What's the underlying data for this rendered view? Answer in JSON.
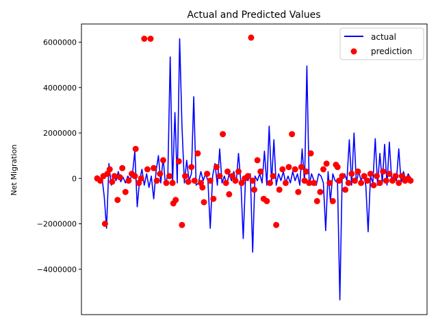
{
  "chart_data": {
    "type": "line",
    "title": "Actual and Predicted Values",
    "xlabel": "",
    "ylabel": "Net Migration",
    "ylim": [
      -6000000,
      6800000
    ],
    "xlim": [
      -20,
      420
    ],
    "yticks": [
      -4000000,
      -2000000,
      0,
      2000000,
      4000000,
      6000000
    ],
    "ytick_labels": [
      "−4000000",
      "−2000000",
      "0",
      "2000000",
      "4000000",
      "6000000"
    ],
    "grid": false,
    "legend": {
      "placement": "top-right",
      "entries": [
        {
          "label": "actual",
          "color": "#0000ff",
          "marker": "line"
        },
        {
          "label": "prediction",
          "color": "#ff0000",
          "marker": "circle"
        }
      ]
    },
    "series": [
      {
        "name": "actual",
        "color": "#0000ff",
        "x": [
          0,
          3,
          6,
          9,
          12,
          15,
          18,
          21,
          24,
          27,
          30,
          33,
          36,
          39,
          42,
          45,
          48,
          51,
          54,
          57,
          60,
          63,
          66,
          69,
          72,
          75,
          78,
          81,
          84,
          87,
          90,
          93,
          96,
          99,
          102,
          105,
          108,
          111,
          114,
          117,
          120,
          123,
          126,
          129,
          132,
          135,
          138,
          141,
          144,
          147,
          150,
          153,
          156,
          159,
          162,
          165,
          168,
          171,
          174,
          177,
          180,
          183,
          186,
          189,
          192,
          195,
          198,
          201,
          204,
          207,
          210,
          213,
          216,
          219,
          222,
          225,
          228,
          231,
          234,
          237,
          240,
          243,
          246,
          249,
          252,
          255,
          258,
          261,
          264,
          267,
          270,
          273,
          276,
          279,
          282,
          285,
          288,
          291,
          294,
          297,
          300,
          303,
          306,
          309,
          312,
          315,
          318,
          321,
          324,
          327,
          330,
          333,
          336,
          339,
          342,
          345,
          348,
          351,
          354,
          357,
          360,
          363,
          366,
          369,
          372,
          375,
          378,
          381,
          384,
          387,
          390,
          393,
          396,
          399
        ],
        "values": [
          0,
          -200000,
          100000,
          -800000,
          -2200000,
          650000,
          -300000,
          200000,
          -100000,
          300000,
          -150000,
          50000,
          -200000,
          100000,
          -50000,
          200000,
          1200000,
          -1250000,
          -100000,
          400000,
          -300000,
          200000,
          -400000,
          100000,
          -900000,
          300000,
          1000000,
          -200000,
          900000,
          -300000,
          200000,
          5350000,
          -300000,
          2900000,
          -200000,
          6150000,
          2300000,
          -200000,
          800000,
          -100000,
          200000,
          3600000,
          -300000,
          -200000,
          300000,
          -100000,
          200000,
          -100000,
          -2200000,
          100000,
          650000,
          -300000,
          1300000,
          -200000,
          100000,
          -300000,
          200000,
          -100000,
          300000,
          -200000,
          1100000,
          -200000,
          -2650000,
          100000,
          -100000,
          200000,
          -3250000,
          100000,
          -100000,
          200000,
          -200000,
          1200000,
          -300000,
          2300000,
          -200000,
          1700000,
          -300000,
          200000,
          -100000,
          300000,
          -200000,
          100000,
          -200000,
          300000,
          -100000,
          200000,
          -300000,
          1300000,
          -200000,
          4950000,
          -300000,
          200000,
          -100000,
          -300000,
          200000,
          100000,
          -200000,
          -2300000,
          300000,
          -1000000,
          200000,
          -100000,
          -200000,
          -5350000,
          100000,
          200000,
          -100000,
          1700000,
          -300000,
          2000000,
          -200000,
          300000,
          -100000,
          200000,
          -300000,
          -2350000,
          100000,
          -200000,
          1750000,
          -300000,
          1100000,
          -200000,
          1500000,
          -300000,
          1600000,
          -100000,
          200000,
          -100000,
          1300000,
          -200000,
          300000,
          -100000,
          200000,
          0
        ]
      },
      {
        "name": "prediction",
        "color": "#ff0000",
        "x": [
          0,
          4,
          8,
          10,
          13,
          16,
          19,
          22,
          26,
          29,
          32,
          36,
          40,
          44,
          48,
          49,
          53,
          56,
          60,
          64,
          68,
          72,
          76,
          80,
          84,
          88,
          92,
          96,
          97,
          100,
          104,
          108,
          112,
          116,
          120,
          124,
          128,
          132,
          134,
          136,
          140,
          144,
          148,
          152,
          156,
          160,
          164,
          166,
          168,
          172,
          176,
          180,
          184,
          188,
          192,
          196,
          198,
          200,
          204,
          208,
          212,
          216,
          220,
          224,
          228,
          232,
          236,
          240,
          244,
          248,
          252,
          256,
          260,
          264,
          266,
          270,
          272,
          276,
          280,
          284,
          288,
          292,
          296,
          300,
          304,
          306,
          308,
          312,
          316,
          320,
          324,
          328,
          332,
          336,
          340,
          344,
          348,
          352,
          356,
          360,
          364,
          368,
          372,
          376,
          380,
          384,
          388,
          392,
          396,
          399
        ],
        "values": [
          0,
          -100000,
          100000,
          -2000000,
          200000,
          400000,
          -150000,
          100000,
          -950000,
          50000,
          450000,
          -600000,
          -100000,
          200000,
          100000,
          1300000,
          -200000,
          0,
          6150000,
          400000,
          6150000,
          450000,
          -100000,
          200000,
          800000,
          -200000,
          100000,
          -200000,
          -1100000,
          -950000,
          750000,
          -2050000,
          100000,
          -150000,
          500000,
          -100000,
          1100000,
          -200000,
          -400000,
          -1050000,
          200000,
          -100000,
          -900000,
          500000,
          100000,
          1950000,
          -200000,
          300000,
          -700000,
          100000,
          -100000,
          300000,
          -200000,
          0,
          100000,
          6200000,
          -100000,
          -500000,
          800000,
          300000,
          -900000,
          -1000000,
          -200000,
          100000,
          -2050000,
          -500000,
          400000,
          -200000,
          500000,
          1950000,
          400000,
          -600000,
          500000,
          -100000,
          300000,
          -200000,
          1100000,
          -200000,
          -1000000,
          -600000,
          400000,
          650000,
          -200000,
          -1000000,
          600000,
          500000,
          -100000,
          100000,
          -500000,
          -200000,
          200000,
          -100000,
          300000,
          -200000,
          100000,
          -100000,
          200000,
          -300000,
          100000,
          -200000,
          300000,
          -100000,
          200000,
          -100000,
          100000,
          -200000,
          100000,
          -100000,
          0,
          -100000
        ]
      }
    ]
  }
}
